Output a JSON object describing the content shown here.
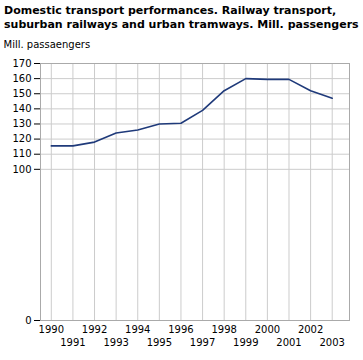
{
  "chart_data": {
    "type": "line",
    "title": "Domestic transport performances. Railway transport,\nsuburban railways and urban tramways. Mill. passengers",
    "ylabel": "Mill. passaengers",
    "x": [
      1990,
      1991,
      1992,
      1993,
      1994,
      1995,
      1996,
      1997,
      1998,
      1999,
      2000,
      2001,
      2002,
      2003
    ],
    "values": [
      115.5,
      115.5,
      118.0,
      124.0,
      126.0,
      130.0,
      130.5,
      139.0,
      152.0,
      160.0,
      159.5,
      159.5,
      152.0,
      147.0
    ],
    "color": "#1f3a7a",
    "xlim": [
      1989.5,
      2003.8
    ],
    "xticks": [
      1990,
      1991,
      1992,
      1993,
      1994,
      1995,
      1996,
      1997,
      1998,
      1999,
      2000,
      2001,
      2002,
      2003
    ],
    "ylim": [
      0,
      170
    ],
    "yticks": [
      0,
      100,
      110,
      120,
      130,
      140,
      150,
      160,
      170
    ],
    "grid": true
  }
}
